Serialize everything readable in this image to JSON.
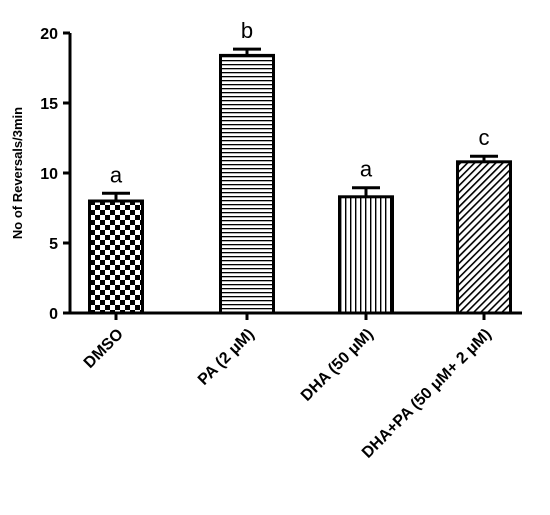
{
  "chart_data": {
    "type": "bar",
    "title": "",
    "xlabel": "",
    "ylabel": "No of Reversals/3min",
    "ylim": [
      0,
      20
    ],
    "yticks": [
      0,
      5,
      10,
      15,
      20
    ],
    "grid": false,
    "categories": [
      "DMSO",
      "PA (2 μM)",
      "DHA (50 μM)",
      "DHA+PA (50 μM+ 2 μM)"
    ],
    "values": [
      8.0,
      18.4,
      8.3,
      10.8
    ],
    "errors": [
      0.55,
      0.45,
      0.65,
      0.4
    ],
    "significance_labels": [
      "a",
      "b",
      "a",
      "c"
    ],
    "patterns": [
      "checkerboard",
      "horizontal-lines",
      "vertical-lines",
      "diagonal-lines"
    ],
    "bar_color": "#000000",
    "fill_color": "#ffffff"
  }
}
